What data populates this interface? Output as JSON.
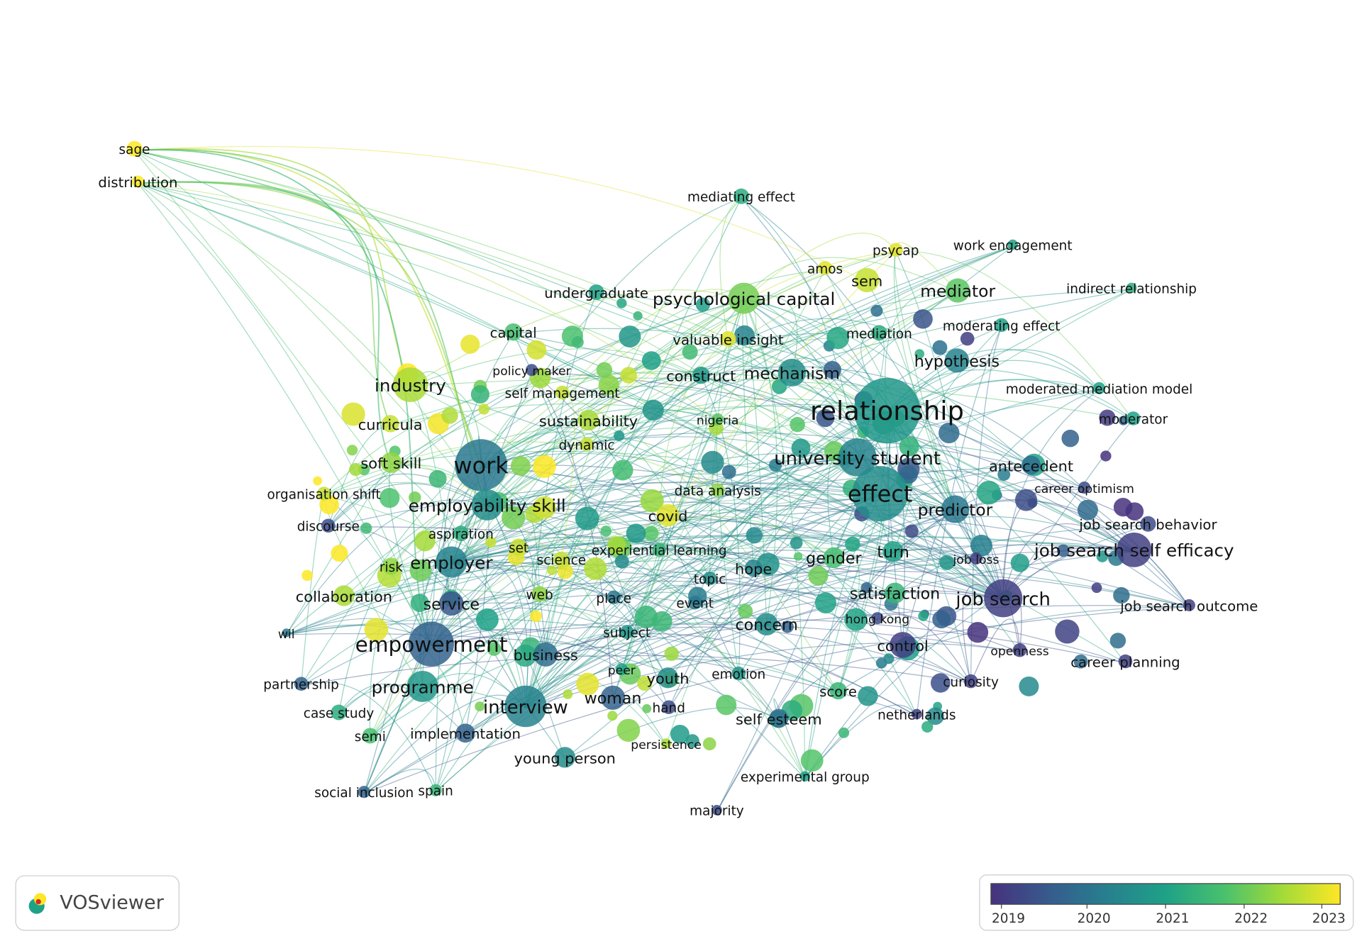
{
  "logo": "VOSviewer",
  "nodes": [
    "sage",
    "distribution",
    "mediating effect",
    "psycap",
    "work engagement",
    "amos",
    "sem",
    "undergraduate",
    "psychological capital",
    "mediator",
    "indirect relationship",
    "capital",
    "mediation",
    "moderating effect",
    "valuable insight",
    "hypothesis",
    "industry",
    "policy maker",
    "construct",
    "mechanism",
    "moderated mediation model",
    "self management",
    "relationship",
    "curricula",
    "sustainability",
    "nigeria",
    "moderator",
    "dynamic",
    "work",
    "soft skill",
    "university student",
    "antecedent",
    "organisation shift",
    "data analysis",
    "career optimism",
    "employability skill",
    "effect",
    "predictor",
    "discourse",
    "covid",
    "job search behavior",
    "aspiration",
    "set",
    "experiential learning",
    "job search self efficacy",
    "science",
    "risk",
    "employer",
    "hope",
    "gender",
    "turn",
    "job loss",
    "topic",
    "collaboration",
    "web",
    "place",
    "satisfaction",
    "job search",
    "service",
    "event",
    "job search outcome",
    "hong kong",
    "wil",
    "subject",
    "concern",
    "empowerment",
    "control",
    "openness",
    "business",
    "career planning",
    "peer",
    "youth",
    "emotion",
    "partnership",
    "curiosity",
    "programme",
    "score",
    "woman",
    "interview",
    "case study",
    "hand",
    "self esteem",
    "netherlands",
    "semi",
    "implementation",
    "persistence",
    "young person",
    "experimental group",
    "social inclusion",
    "spain",
    "majority"
  ],
  "color_legend": {
    "ticks": [
      2019,
      2020,
      2021,
      2022,
      2023
    ]
  }
}
